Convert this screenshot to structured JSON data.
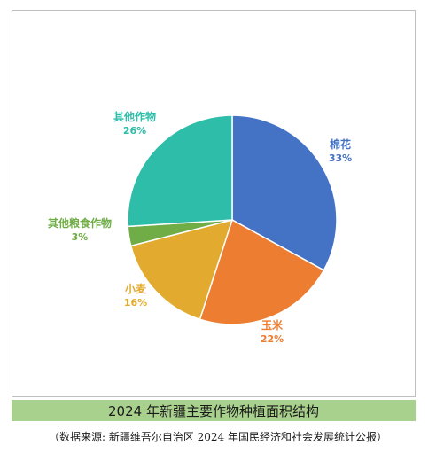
{
  "chart_data": {
    "type": "pie",
    "title": "2024 年新疆主要作物种植面积结构",
    "source": "（数据来源: 新疆维吾尔自治区 2024 年国民经济和社会发展统计公报）",
    "slices": [
      {
        "label": "棉花",
        "value": 33,
        "pct_label": "33%",
        "color": "#4472c4"
      },
      {
        "label": "玉米",
        "value": 22,
        "pct_label": "22%",
        "color": "#ed7d31"
      },
      {
        "label": "小麦",
        "value": 16,
        "pct_label": "16%",
        "color": "#e2ab2f"
      },
      {
        "label": "其他粮食作物",
        "value": 3,
        "pct_label": "3%",
        "color": "#70ad47"
      },
      {
        "label": "其他作物",
        "value": 26,
        "pct_label": "26%",
        "color": "#2dbda8"
      }
    ],
    "label_colors": [
      "#4472c4",
      "#ed7d31",
      "#e2ab2f",
      "#70ad47",
      "#2dbda8"
    ]
  }
}
